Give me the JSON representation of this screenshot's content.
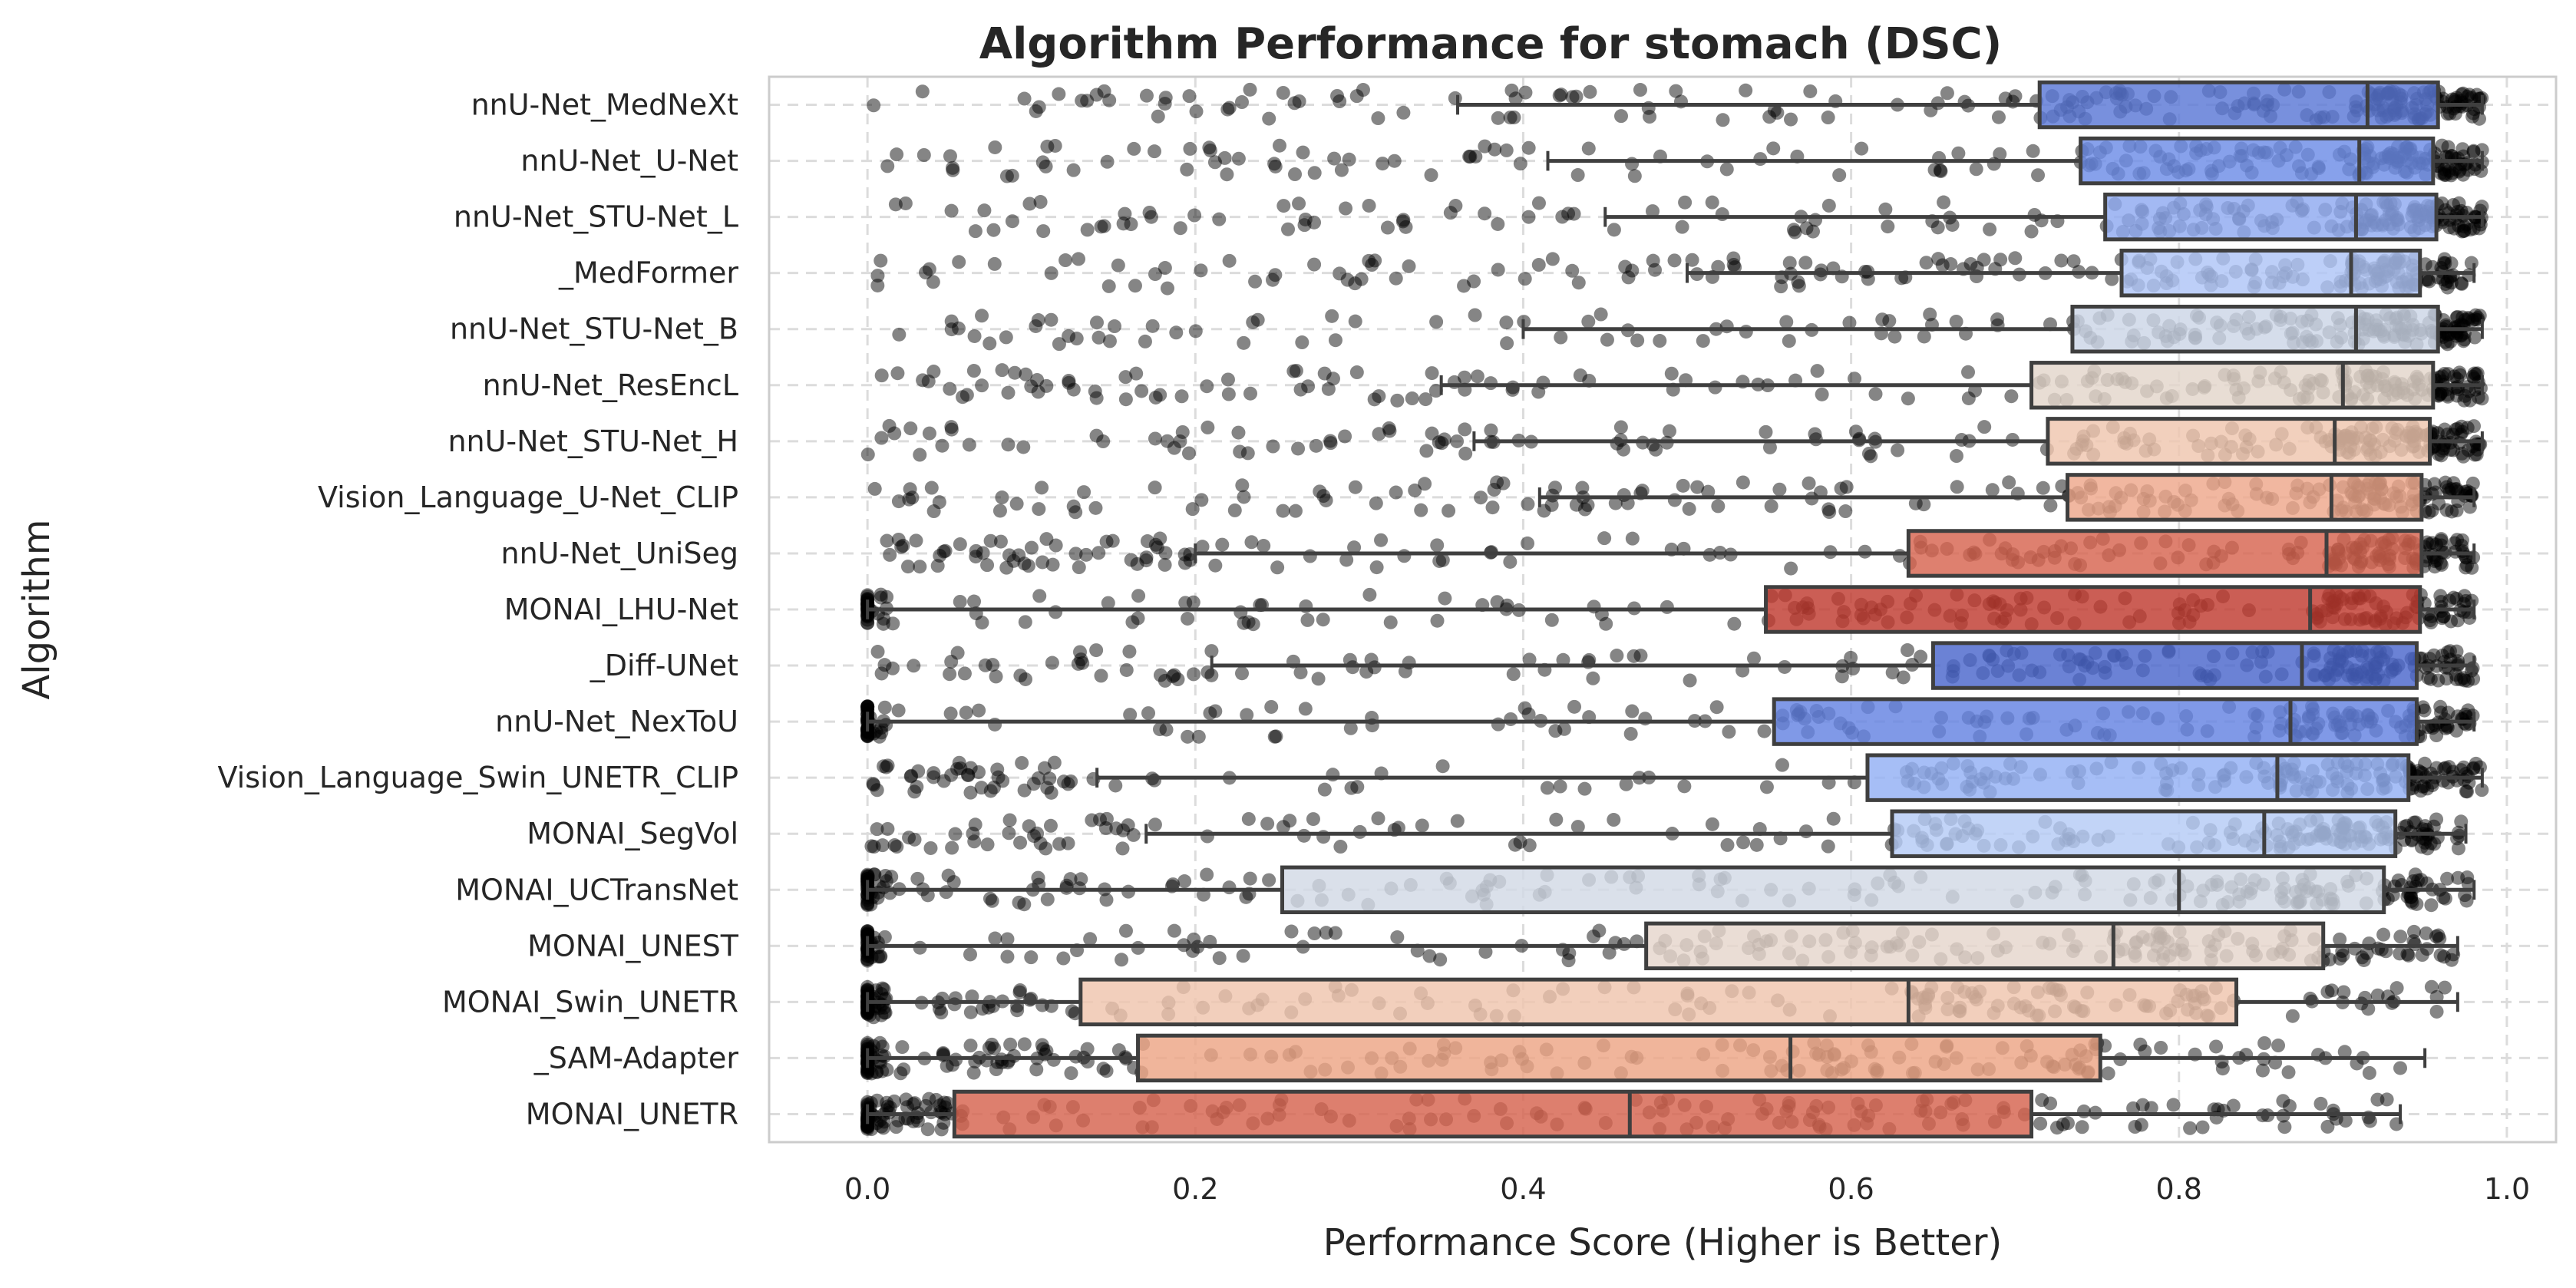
{
  "chart_data": {
    "type": "boxplot",
    "title": "Algorithm Performance for stomach (DSC)",
    "xlabel": "Performance Score (Higher is Better)",
    "ylabel": "Algorithm",
    "xlim": [
      -0.06,
      1.03
    ],
    "xticks": [
      0.0,
      0.2,
      0.4,
      0.6,
      0.8,
      1.0
    ],
    "xtick_labels": [
      "0.0",
      "0.2",
      "0.4",
      "0.6",
      "0.8",
      "1.0"
    ],
    "grid": true,
    "categories": [
      "nnU-Net_MedNeXt",
      "nnU-Net_U-Net",
      "nnU-Net_STU-Net_L",
      "_MedFormer",
      "nnU-Net_STU-Net_B",
      "nnU-Net_ResEncL",
      "nnU-Net_STU-Net_H",
      "Vision_Language_U-Net_CLIP",
      "nnU-Net_UniSeg",
      "MONAI_LHU-Net",
      "_Diff-UNet",
      "nnU-Net_NexToU",
      "Vision_Language_Swin_UNETR_CLIP",
      "MONAI_SegVol",
      "MONAI_UCTransNet",
      "MONAI_UNEST",
      "MONAI_Swin_UNETR",
      "_SAM-Adapter",
      "MONAI_UNETR"
    ],
    "boxes": [
      {
        "whisker_low": 0.36,
        "q1": 0.715,
        "median": 0.915,
        "q3": 0.958,
        "whisker_high": 0.985,
        "color": "#5a78d6"
      },
      {
        "whisker_low": 0.415,
        "q1": 0.74,
        "median": 0.91,
        "q3": 0.955,
        "whisker_high": 0.985,
        "color": "#6c8ce6"
      },
      {
        "whisker_low": 0.45,
        "q1": 0.755,
        "median": 0.908,
        "q3": 0.957,
        "whisker_high": 0.985,
        "color": "#8fa9f0"
      },
      {
        "whisker_low": 0.5,
        "q1": 0.765,
        "median": 0.905,
        "q3": 0.947,
        "whisker_high": 0.98,
        "color": "#aec5f6"
      },
      {
        "whisker_low": 0.4,
        "q1": 0.735,
        "median": 0.908,
        "q3": 0.958,
        "whisker_high": 0.985,
        "color": "#ccd5e6"
      },
      {
        "whisker_low": 0.35,
        "q1": 0.71,
        "median": 0.9,
        "q3": 0.955,
        "whisker_high": 0.985,
        "color": "#e3d5cb"
      },
      {
        "whisker_low": 0.37,
        "q1": 0.72,
        "median": 0.895,
        "q3": 0.953,
        "whisker_high": 0.985,
        "color": "#efc6af"
      },
      {
        "whisker_low": 0.41,
        "q1": 0.732,
        "median": 0.893,
        "q3": 0.948,
        "whisker_high": 0.98,
        "color": "#eea78b"
      },
      {
        "whisker_low": 0.2,
        "q1": 0.635,
        "median": 0.89,
        "q3": 0.948,
        "whisker_high": 0.98,
        "color": "#d7644f"
      },
      {
        "whisker_low": 0.0,
        "q1": 0.548,
        "median": 0.88,
        "q3": 0.947,
        "whisker_high": 0.98,
        "color": "#bf3a30"
      },
      {
        "whisker_low": 0.21,
        "q1": 0.65,
        "median": 0.875,
        "q3": 0.945,
        "whisker_high": 0.98,
        "color": "#4a67cc"
      },
      {
        "whisker_low": 0.0,
        "q1": 0.553,
        "median": 0.868,
        "q3": 0.945,
        "whisker_high": 0.98,
        "color": "#6482e2"
      },
      {
        "whisker_low": 0.14,
        "q1": 0.61,
        "median": 0.86,
        "q3": 0.94,
        "whisker_high": 0.985,
        "color": "#93b0f4"
      },
      {
        "whisker_low": 0.17,
        "q1": 0.625,
        "median": 0.852,
        "q3": 0.932,
        "whisker_high": 0.975,
        "color": "#b4cbf5"
      },
      {
        "whisker_low": 0.0,
        "q1": 0.253,
        "median": 0.8,
        "q3": 0.925,
        "whisker_high": 0.98,
        "color": "#d2d9e5"
      },
      {
        "whisker_low": 0.0,
        "q1": 0.475,
        "median": 0.76,
        "q3": 0.888,
        "whisker_high": 0.97,
        "color": "#e5d6cc"
      },
      {
        "whisker_low": 0.0,
        "q1": 0.13,
        "median": 0.635,
        "q3": 0.835,
        "whisker_high": 0.97,
        "color": "#efc5ad"
      },
      {
        "whisker_low": 0.0,
        "q1": 0.165,
        "median": 0.563,
        "q3": 0.752,
        "whisker_high": 0.95,
        "color": "#eda585"
      },
      {
        "whisker_low": 0.0,
        "q1": 0.053,
        "median": 0.465,
        "q3": 0.71,
        "whisker_high": 0.935,
        "color": "#d5634e"
      }
    ]
  }
}
